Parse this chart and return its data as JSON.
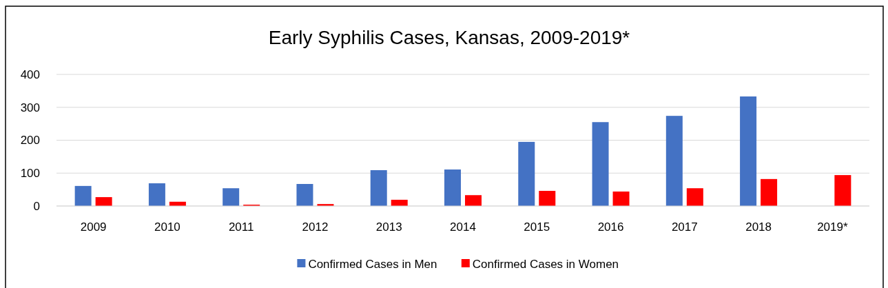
{
  "chart_data": {
    "type": "bar",
    "title": "Early Syphilis Cases, Kansas, 2009-2019*",
    "categories": [
      "2009",
      "2010",
      "2011",
      "2012",
      "2013",
      "2014",
      "2015",
      "2016",
      "2017",
      "2018",
      "2019*"
    ],
    "series": [
      {
        "name": "Confirmed Cases in Men",
        "color": "#4472c4",
        "values": [
          61,
          69,
          54,
          67,
          109,
          111,
          195,
          255,
          274,
          333,
          null
        ]
      },
      {
        "name": "Confirmed Cases in Women",
        "color": "#ff0000",
        "values": [
          27,
          13,
          4,
          6,
          19,
          33,
          46,
          44,
          54,
          82,
          94
        ]
      }
    ],
    "ylim": [
      0,
      400
    ],
    "yticks": [
      0,
      100,
      200,
      300,
      400
    ],
    "grid": "y",
    "legend": "bottom"
  }
}
